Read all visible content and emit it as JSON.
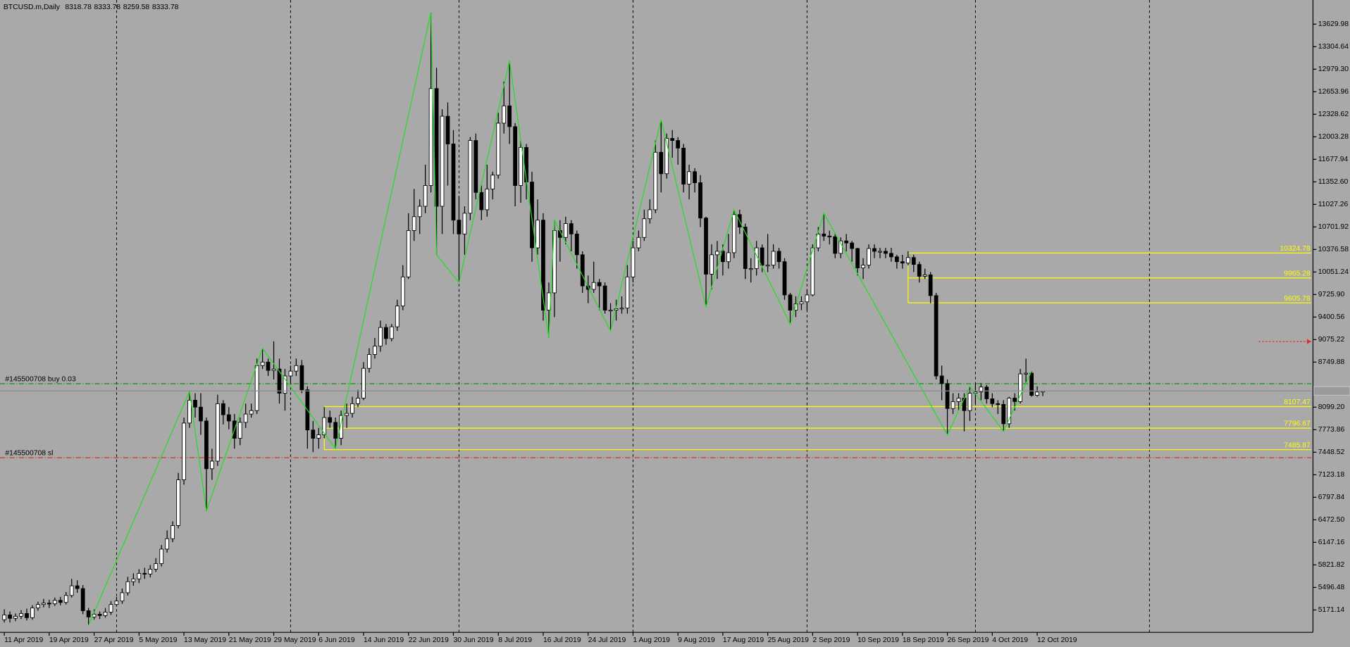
{
  "chart_data": {
    "type": "candlestick",
    "title": "BTCUSD.m,Daily",
    "background": "#a9a9a9",
    "up_color": "#ffffff",
    "down_color": "#000000",
    "wick_color": "#000000",
    "grid": true,
    "categories": [
      "11 Apr 2019",
      null,
      null,
      null,
      null,
      null,
      null,
      null,
      "19 Apr 2019",
      null,
      null,
      null,
      null,
      null,
      null,
      null,
      "27 Apr 2019",
      null,
      null,
      null,
      null,
      null,
      null,
      null,
      "5 May 2019",
      null,
      null,
      null,
      null,
      null,
      null,
      null,
      "13 May 2019",
      null,
      null,
      null,
      null,
      null,
      null,
      null,
      "21 May 2019",
      null,
      null,
      null,
      null,
      null,
      null,
      null,
      "29 May 2019",
      null,
      null,
      null,
      null,
      null,
      null,
      null,
      "6 Jun 2019",
      null,
      null,
      null,
      null,
      null,
      null,
      null,
      "14 Jun 2019",
      null,
      null,
      null,
      null,
      null,
      null,
      null,
      "22 Jun 2019",
      null,
      null,
      null,
      null,
      null,
      null,
      null,
      "30 Jun 2019",
      null,
      null,
      null,
      null,
      null,
      null,
      null,
      "8 Jul 2019",
      null,
      null,
      null,
      null,
      null,
      null,
      null,
      "16 Jul 2019",
      null,
      null,
      null,
      null,
      null,
      null,
      null,
      "24 Jul 2019",
      null,
      null,
      null,
      null,
      null,
      null,
      null,
      "1 Aug 2019",
      null,
      null,
      null,
      null,
      null,
      null,
      null,
      "9 Aug 2019",
      null,
      null,
      null,
      null,
      null,
      null,
      null,
      "17 Aug 2019",
      null,
      null,
      null,
      null,
      null,
      null,
      null,
      "25 Aug 2019",
      null,
      null,
      null,
      null,
      null,
      null,
      null,
      "2 Sep 2019",
      null,
      null,
      null,
      null,
      null,
      null,
      null,
      "10 Sep 2019",
      null,
      null,
      null,
      null,
      null,
      null,
      null,
      "18 Sep 2019",
      null,
      null,
      null,
      null,
      null,
      null,
      null,
      "26 Sep 2019",
      null,
      null,
      null,
      null,
      null,
      null,
      null,
      "4 Oct 2019",
      null,
      null,
      null,
      null,
      null,
      null,
      null,
      "12 Oct 2019",
      null
    ],
    "open": [
      5030,
      5100,
      5050,
      5080,
      5120,
      5060,
      5200,
      5250,
      5270,
      5260,
      5310,
      5280,
      5380,
      5520,
      5480,
      5160,
      5070,
      5110,
      5090,
      5140,
      5250,
      5300,
      5420,
      5580,
      5620,
      5700,
      5690,
      5760,
      5840,
      6050,
      6200,
      6390,
      7050,
      7870,
      8200,
      8100,
      7900,
      7210,
      7320,
      8150,
      7990,
      7900,
      7650,
      7880,
      8000,
      8050,
      8700,
      8750,
      8630,
      8650,
      8300,
      8550,
      8620,
      8700,
      8350,
      7770,
      7650,
      7700,
      7950,
      7880,
      7650,
      7980,
      8010,
      8150,
      8230,
      8660,
      8860,
      8980,
      9250,
      9090,
      9260,
      9560,
      9980,
      10650,
      10850,
      11000,
      11300,
      12700,
      11000,
      12300,
      11900,
      10800,
      10600,
      10900,
      11950,
      11200,
      10950,
      11250,
      11450,
      12200,
      12450,
      12150,
      11300,
      11850,
      11350,
      10400,
      10800,
      9500,
      9750,
      10650,
      10550,
      10750,
      10600,
      10300,
      9850,
      9800,
      9900,
      9850,
      9500,
      9500,
      9520,
      9530,
      9980,
      10400,
      10550,
      10820,
      10950,
      11780,
      11470,
      11980,
      11950,
      11840,
      11320,
      11500,
      11340,
      10830,
      10020,
      10300,
      10350,
      10200,
      10330,
      10880,
      10700,
      10100,
      10100,
      10400,
      10150,
      10150,
      10350,
      10200,
      9720,
      9500,
      9590,
      9620,
      9720,
      10400,
      10600,
      10570,
      10560,
      10320,
      10500,
      10470,
      10390,
      10110,
      10150,
      10390,
      10350,
      10350,
      10320,
      10270,
      10200,
      10180,
      10260,
      10160,
      9990,
      10010,
      9710,
      8550,
      8440,
      8080,
      8180,
      8230,
      8050,
      8300,
      8320,
      8390,
      8220,
      8150,
      8140,
      7860,
      8230,
      8180,
      8580,
      8590,
      8270,
      8318.78
    ],
    "high": [
      5180,
      5150,
      5120,
      5170,
      5190,
      5240,
      5290,
      5330,
      5320,
      5350,
      5360,
      5430,
      5620,
      5600,
      5530,
      5200,
      5180,
      5150,
      5200,
      5300,
      5360,
      5480,
      5650,
      5700,
      5760,
      5780,
      5820,
      5920,
      6110,
      6320,
      6450,
      7150,
      7950,
      8330,
      8300,
      8300,
      7950,
      7500,
      8280,
      8200,
      8100,
      8000,
      7950,
      8150,
      8150,
      8800,
      8950,
      8800,
      9050,
      8800,
      8650,
      8700,
      8800,
      8780,
      8400,
      7900,
      7800,
      8100,
      8050,
      7950,
      8050,
      8150,
      8250,
      8350,
      8750,
      8950,
      9100,
      9350,
      9300,
      9300,
      9650,
      10150,
      10900,
      11250,
      11100,
      11600,
      13800,
      13000,
      12400,
      12500,
      12100,
      11150,
      11000,
      12000,
      12050,
      11300,
      11600,
      11500,
      12350,
      12800,
      13100,
      12200,
      11950,
      11900,
      11500,
      11100,
      10900,
      9900,
      10800,
      10800,
      10850,
      10800,
      10650,
      10350,
      10000,
      10200,
      9950,
      9900,
      9600,
      9650,
      9700,
      10150,
      10500,
      10650,
      10950,
      11100,
      11950,
      12250,
      12050,
      12100,
      12000,
      11900,
      11600,
      11550,
      11450,
      10850,
      10450,
      10500,
      10450,
      10600,
      10950,
      10950,
      10750,
      10250,
      10500,
      10450,
      10600,
      10450,
      10400,
      10250,
      9750,
      9700,
      9700,
      9800,
      10450,
      10700,
      10900,
      10650,
      10600,
      10550,
      10600,
      10500,
      10400,
      10250,
      10450,
      10450,
      10400,
      10400,
      10400,
      10300,
      10300,
      10350,
      10300,
      10200,
      10100,
      10050,
      9750,
      8700,
      8500,
      8300,
      8300,
      8300,
      8400,
      8450,
      8450,
      8420,
      8300,
      8200,
      8200,
      8250,
      8300,
      8650,
      8800,
      8620,
      8400,
      8333.78
    ],
    "low": [
      4990,
      4990,
      5010,
      5040,
      5020,
      5030,
      5160,
      5210,
      5200,
      5230,
      5240,
      5250,
      5350,
      5420,
      5110,
      4950,
      5030,
      5040,
      5060,
      5100,
      5220,
      5260,
      5380,
      5520,
      5560,
      5620,
      5640,
      5720,
      5800,
      6000,
      6150,
      6350,
      6980,
      7800,
      7950,
      7700,
      6600,
      7050,
      7250,
      7850,
      7780,
      7500,
      7550,
      7800,
      7950,
      8000,
      8650,
      8550,
      8500,
      8150,
      8050,
      8450,
      8550,
      8300,
      7500,
      7450,
      7500,
      7650,
      7800,
      7500,
      7550,
      7800,
      7950,
      8100,
      8200,
      8600,
      8800,
      8900,
      9000,
      9050,
      9200,
      9500,
      9950,
      10500,
      10600,
      10900,
      11200,
      10300,
      10600,
      11300,
      10600,
      9900,
      10300,
      10800,
      11100,
      10800,
      10850,
      11100,
      11400,
      12050,
      11900,
      11000,
      11050,
      11100,
      10200,
      10300,
      9350,
      9100,
      9400,
      10200,
      10450,
      10350,
      10100,
      9750,
      9600,
      9750,
      9500,
      9450,
      9200,
      9350,
      9450,
      9450,
      9900,
      10350,
      10500,
      10750,
      10900,
      11200,
      11400,
      11700,
      11600,
      11200,
      11100,
      11200,
      10700,
      9550,
      9800,
      9950,
      10000,
      10100,
      10250,
      10600,
      9950,
      9900,
      10000,
      10050,
      10050,
      10100,
      10100,
      9650,
      9300,
      9400,
      9500,
      9500,
      9700,
      10350,
      10500,
      10450,
      10250,
      10250,
      10350,
      10200,
      10000,
      9950,
      10100,
      10250,
      10250,
      10250,
      10200,
      10100,
      10100,
      10150,
      10050,
      9900,
      9950,
      9600,
      8500,
      8200,
      7700,
      8000,
      8050,
      7750,
      7900,
      8150,
      8200,
      8150,
      8100,
      8000,
      7750,
      7800,
      8050,
      8150,
      8450,
      8250,
      8250,
      8259.58
    ],
    "close": [
      5100,
      5050,
      5080,
      5120,
      5060,
      5200,
      5250,
      5270,
      5260,
      5310,
      5280,
      5380,
      5520,
      5480,
      5160,
      5070,
      5110,
      5090,
      5140,
      5250,
      5300,
      5420,
      5580,
      5620,
      5700,
      5690,
      5760,
      5840,
      6050,
      6200,
      6390,
      7050,
      7870,
      8200,
      8100,
      7900,
      7210,
      7320,
      8150,
      7990,
      7900,
      7650,
      7880,
      8000,
      8050,
      8700,
      8750,
      8630,
      8650,
      8300,
      8550,
      8620,
      8700,
      8350,
      7770,
      7650,
      7700,
      7950,
      7880,
      7650,
      7980,
      8010,
      8150,
      8230,
      8660,
      8860,
      8980,
      9250,
      9090,
      9260,
      9560,
      9980,
      10650,
      10850,
      11000,
      11300,
      12700,
      11000,
      12300,
      11900,
      10800,
      10600,
      10900,
      11950,
      11200,
      10950,
      11250,
      11450,
      12200,
      12450,
      12150,
      11300,
      11850,
      11350,
      10400,
      10800,
      9500,
      9750,
      10650,
      10550,
      10750,
      10600,
      10300,
      9850,
      9800,
      9900,
      9850,
      9500,
      9500,
      9520,
      9530,
      9980,
      10400,
      10550,
      10820,
      10950,
      11780,
      11470,
      11980,
      11950,
      11840,
      11320,
      11500,
      11340,
      10830,
      10020,
      10300,
      10350,
      10200,
      10330,
      10880,
      10700,
      10100,
      10100,
      10400,
      10150,
      10150,
      10350,
      10200,
      9720,
      9500,
      9590,
      9620,
      9720,
      10400,
      10600,
      10570,
      10560,
      10320,
      10500,
      10470,
      10390,
      10110,
      10150,
      10390,
      10350,
      10350,
      10320,
      10270,
      10200,
      10180,
      10260,
      10160,
      9990,
      10010,
      9710,
      8550,
      8440,
      8080,
      8180,
      8230,
      8050,
      8300,
      8320,
      8390,
      8220,
      8150,
      8140,
      7860,
      8230,
      8180,
      8580,
      8590,
      8270,
      8318.78,
      8333.78
    ],
    "ylim": [
      4848,
      13978
    ],
    "yticks": [
      13629.98,
      13304.64,
      {
        "value": 12979.3,
        "label": "12979.30"
      },
      12653.96,
      12328.62,
      12003.28,
      11677.94,
      {
        "value": 11352.6,
        "label": "11352.60"
      },
      11027.26,
      10701.92,
      10376.58,
      10051.24,
      {
        "value": 9725.9,
        "label": "9725.90"
      },
      9400.56,
      9075.22,
      8749.88,
      {
        "value": 8099.2,
        "label": "8099.20"
      },
      7773.86,
      7448.52,
      7123.18,
      6797.84,
      {
        "value": 6472.5,
        "label": "6472.50"
      },
      6147.16,
      5821.82,
      5496.48,
      5171.14
    ],
    "zigzag": {
      "color": "#22dd22",
      "x": [
        "26 Apr 2019",
        "14 May 2019",
        "17 May 2019",
        "27 May 2019",
        "9 Jun 2019",
        "26 Jun 2019",
        "27 Jun 2019",
        "1 Jul 2019",
        "10 Jul 2019",
        "17 Jul 2019",
        "18 Jul 2019",
        "28 Jul 2019",
        "6 Aug 2019",
        "14 Aug 2019",
        "19 Aug 2019",
        "29 Aug 2019",
        "4 Sep 2019",
        "26 Sep 2019",
        "30 Sep 2019",
        "6 Oct 2019",
        "11 Oct 2019"
      ],
      "values": [
        4950,
        8330,
        6600,
        8950,
        7500,
        13800,
        10300,
        9900,
        13100,
        9100,
        10800,
        9200,
        12250,
        9550,
        10950,
        9300,
        10900,
        7700,
        8400,
        7750,
        8620
      ]
    },
    "levels": {
      "color": "#ffff00",
      "from": [
        "19 Sep 2019",
        "19 Sep 2019",
        "19 Sep 2019",
        "7 Jun 2019",
        "7 Jun 2019",
        "7 Jun 2019"
      ],
      "values": [
        10324.78,
        9965.28,
        9605.78,
        8107.47,
        7796.67,
        7485.87
      ]
    },
    "orders": [
      {
        "label": "#145500708 buy 0.03",
        "value": 8438,
        "color": "#1a8a1a"
      },
      {
        "label": "#145500708 sl",
        "value": 7370,
        "color": "#e03020"
      }
    ],
    "alert_level": {
      "value": 9047,
      "color": "#e03020"
    }
  }
}
